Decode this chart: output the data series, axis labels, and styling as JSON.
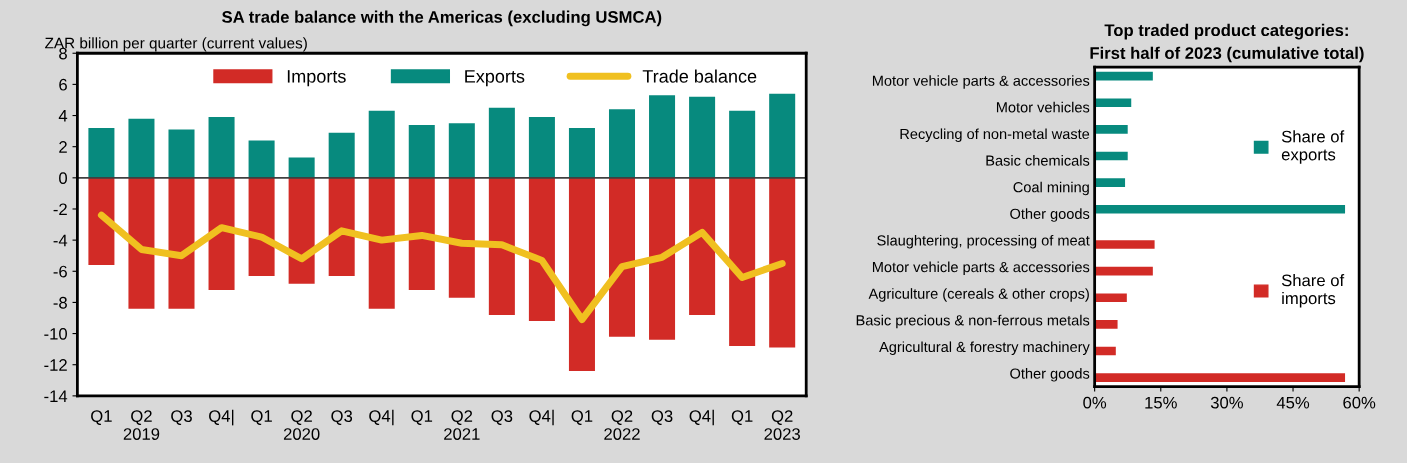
{
  "chart_data": [
    {
      "type": "bar",
      "title": "SA trade balance with the Americas (excluding USMCA)",
      "ylabel": "ZAR billion per quarter (current values)",
      "categories": [
        "Q1",
        "Q2\n2019",
        "Q3",
        "Q4|",
        "Q1",
        "Q2\n2020",
        "Q3",
        "Q4|",
        "Q1",
        "Q2\n2021",
        "Q3",
        "Q4|",
        "Q1",
        "Q2\n2022",
        "Q3",
        "Q4|",
        "Q1",
        "Q2\n2023"
      ],
      "stacked": true,
      "ref_lines": [
        {
          "axis": "y",
          "value": 0,
          "color": "#404040"
        }
      ],
      "series": [
        {
          "name": "Imports",
          "color": "#d22b26",
          "values": [
            -5.6,
            -8.4,
            -8.4,
            -7.2,
            -6.3,
            -6.8,
            -6.3,
            -8.4,
            -7.2,
            -7.7,
            -8.8,
            -9.2,
            -12.4,
            -10.2,
            -10.4,
            -8.8,
            -10.8,
            -10.9
          ]
        },
        {
          "name": "Exports",
          "color": "#078a7e",
          "values": [
            3.2,
            3.8,
            3.1,
            3.9,
            2.4,
            1.3,
            2.9,
            4.3,
            3.4,
            3.5,
            4.5,
            3.9,
            3.2,
            4.4,
            5.3,
            5.2,
            4.3,
            5.4
          ]
        },
        {
          "name": "Trade balance",
          "type": "line",
          "color": "#f0c020",
          "values": [
            -2.4,
            -4.6,
            -5.0,
            -3.2,
            -3.8,
            -5.2,
            -3.4,
            -4.0,
            -3.7,
            -4.2,
            -4.3,
            -5.3,
            -9.1,
            -5.7,
            -5.1,
            -3.5,
            -6.4,
            -5.5
          ]
        }
      ],
      "ylim": [
        -14,
        8
      ],
      "yticks": [
        -14,
        -12,
        -10,
        -8,
        -6,
        -4,
        -2,
        0,
        2,
        4,
        6,
        8
      ],
      "grid": false,
      "legend": "top"
    },
    {
      "type": "bar",
      "orientation": "horizontal",
      "title": "Top traded product categories:\nFirst half of 2023 (cumulative total)",
      "categories": [
        "Motor vehicle parts & accessories",
        "Motor vehicles",
        "Recycling of non-metal waste",
        "Basic chemicals",
        "Coal mining",
        "Other goods",
        "Slaughtering, processing of meat",
        "Motor vehicle parts & accessories",
        "Agriculture (cereals & other crops)",
        "Basic precious & non-ferrous metals",
        "Agricultural & forestry machinery",
        "Other goods"
      ],
      "series": [
        {
          "name": "Share of\nexports",
          "color": "#078a7e",
          "values": [
            13.2,
            8.3,
            7.5,
            7.5,
            6.9,
            56.8,
            null,
            null,
            null,
            null,
            null,
            null
          ]
        },
        {
          "name": "Share of\nimports",
          "color": "#d22b26",
          "values": [
            null,
            null,
            null,
            null,
            null,
            null,
            13.6,
            13.2,
            7.3,
            5.2,
            4.8,
            56.8
          ]
        }
      ],
      "xlim": [
        0,
        60
      ],
      "xticks": [
        {
          "value": 0,
          "label": "0%"
        },
        {
          "value": 15,
          "label": "15%"
        },
        {
          "value": 30,
          "label": "30%"
        },
        {
          "value": 45,
          "label": "45%"
        },
        {
          "value": 60,
          "label": "60%"
        }
      ],
      "grid": false,
      "legend": "right"
    }
  ]
}
